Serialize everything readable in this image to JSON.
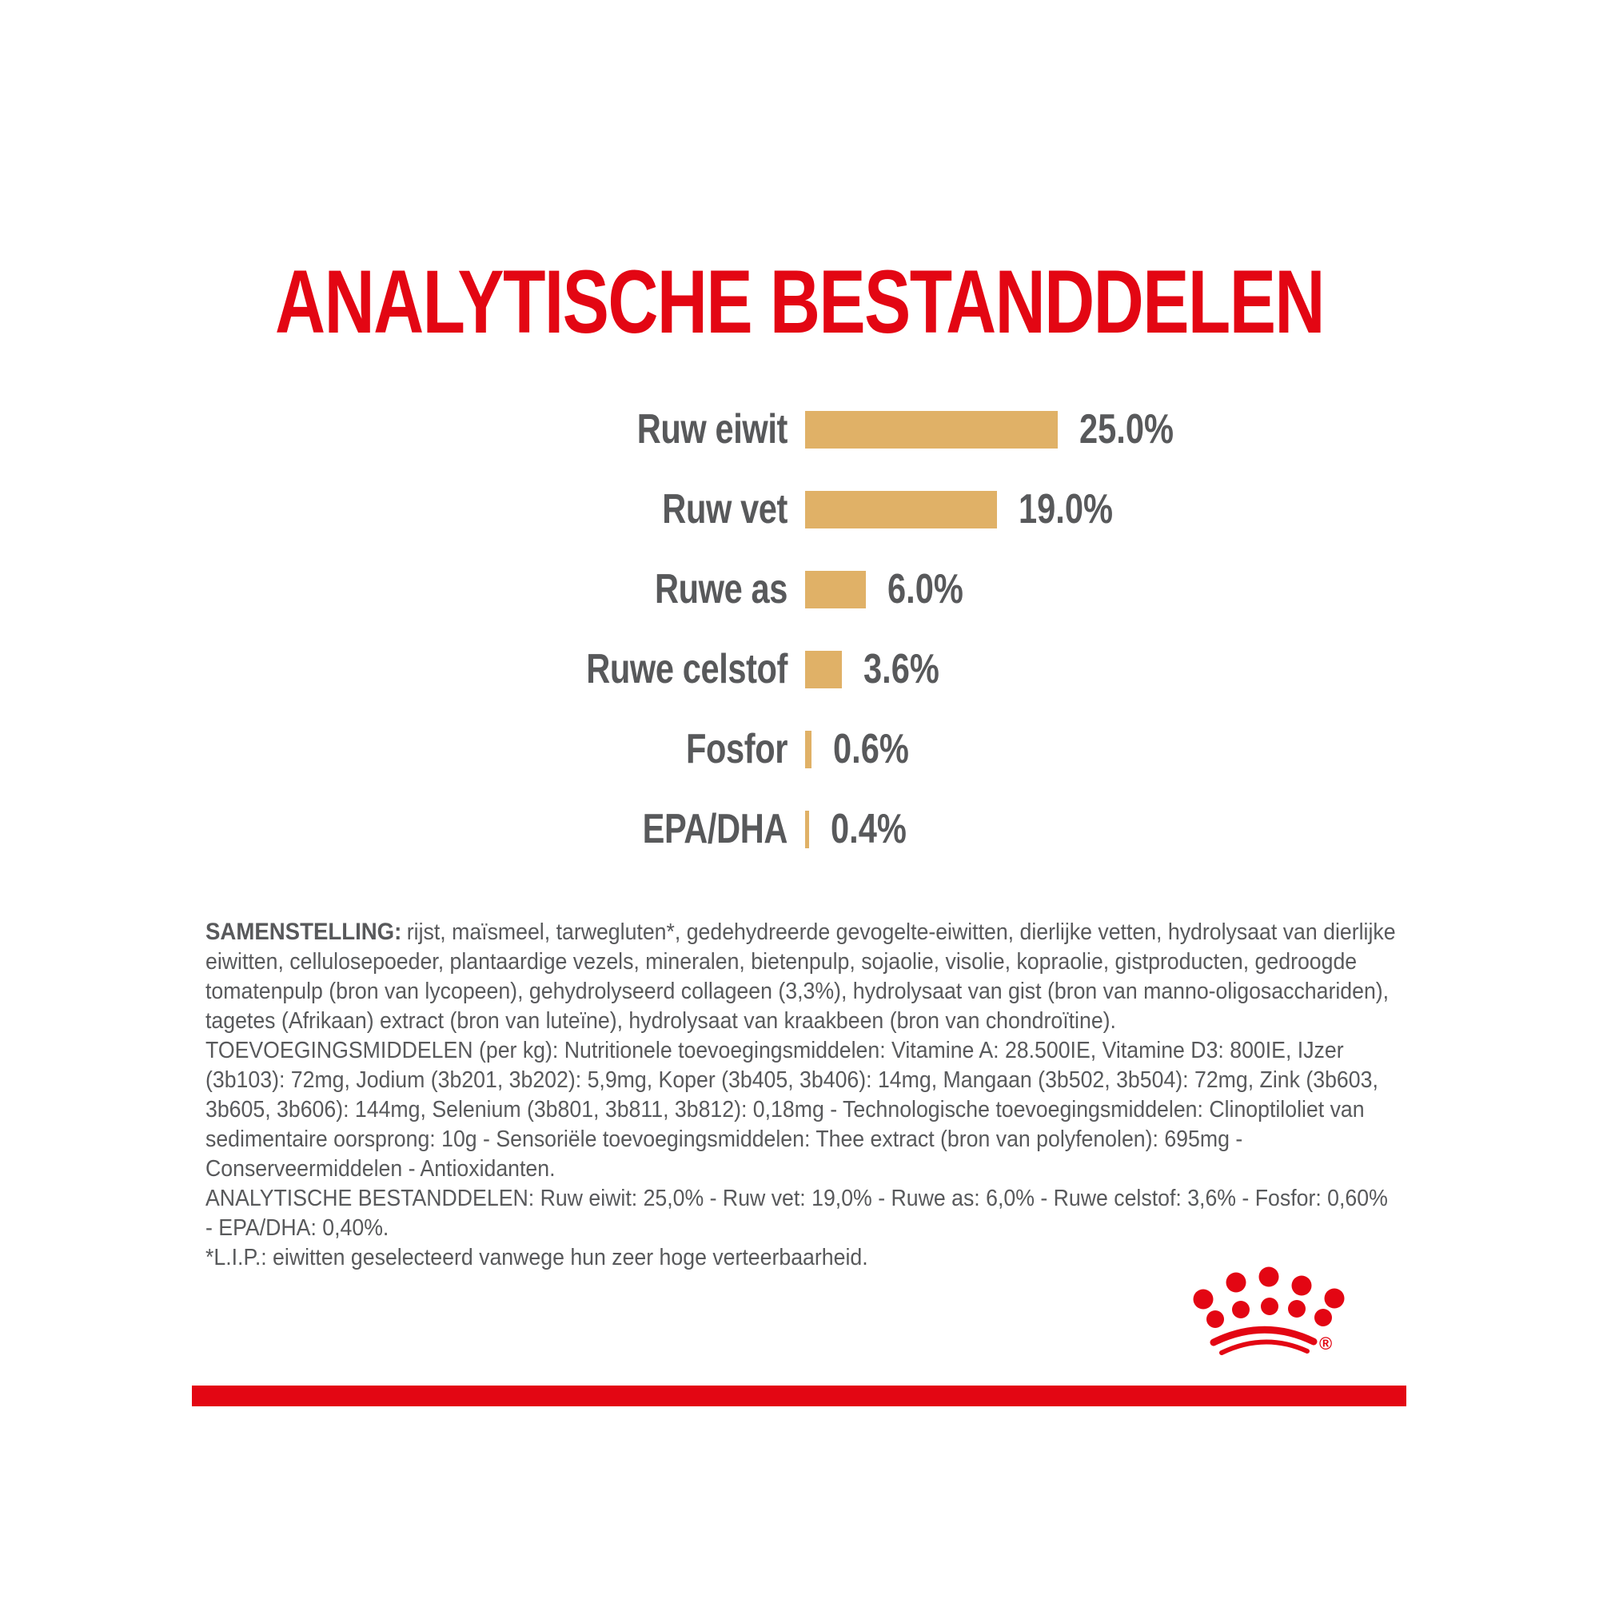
{
  "title": "ANALYTISCHE BESTANDDELEN",
  "colors": {
    "brand_red": "#e30613",
    "bar_tan": "#e0b167",
    "text_gray": "#58595b",
    "background": "#ffffff"
  },
  "chart_data": {
    "type": "bar",
    "orientation": "horizontal",
    "title": "ANALYTISCHE BESTANDDELEN",
    "unit": "%",
    "categories": [
      "Ruw eiwit",
      "Ruw vet",
      "Ruwe as",
      "Ruwe celstof",
      "Fosfor",
      "EPA/DHA"
    ],
    "values": [
      25.0,
      19.0,
      6.0,
      3.6,
      0.6,
      0.4
    ],
    "xlim": [
      0,
      25
    ],
    "grid": false,
    "legend": false,
    "bar_color": "#e0b167",
    "rows": [
      {
        "label": "Ruw eiwit",
        "value": 25.0,
        "display": "25.0%"
      },
      {
        "label": "Ruw vet",
        "value": 19.0,
        "display": "19.0%"
      },
      {
        "label": "Ruwe as",
        "value": 6.0,
        "display": "6.0%"
      },
      {
        "label": "Ruwe celstof",
        "value": 3.6,
        "display": "3.6%"
      },
      {
        "label": "Fosfor",
        "value": 0.6,
        "display": "0.6%"
      },
      {
        "label": "EPA/DHA",
        "value": 0.4,
        "display": "0.4%"
      }
    ]
  },
  "composition": {
    "samenstelling_label": "SAMENSTELLING:",
    "samenstelling_text": "rijst, maïsmeel, tarwegluten*, gedehydreerde gevogelte-eiwitten, dierlijke vetten, hydrolysaat van dierlijke eiwitten, cellulosepoeder, plantaardige vezels, mineralen, bietenpulp, sojaolie, visolie, kopraolie, gistproducten, gedroogde tomatenpulp (bron van lycopeen), gehydrolyseerd collageen (3,3%), hydrolysaat van gist (bron van manno-oligosacchariden), tagetes (Afrikaan) extract (bron van luteïne), hydrolysaat van kraakbeen (bron van chondroïtine).",
    "toevoegingsmiddelen": "TOEVOEGINGSMIDDELEN (per kg): Nutritionele toevoegingsmiddelen: Vitamine A: 28.500IE, Vitamine D3: 800IE, IJzer (3b103): 72mg, Jodium (3b201, 3b202): 5,9mg, Koper (3b405, 3b406): 14mg, Mangaan (3b502, 3b504): 72mg, Zink (3b603, 3b605, 3b606): 144mg, Selenium (3b801, 3b811, 3b812): 0,18mg - Technologische toevoegingsmiddelen: Clinoptiloliet van sedimentaire oorsprong: 10g - Sensoriële toevoegingsmiddelen: Thee extract (bron van polyfenolen): 695mg - Conserveermiddelen - Antioxidanten.",
    "analytische": "ANALYTISCHE BESTANDDELEN: Ruw eiwit: 25,0% - Ruw vet: 19,0% - Ruwe as: 6,0% - Ruwe celstof: 3,6% - Fosfor: 0,60% - EPA/DHA: 0,40%.",
    "lip_note": "*L.I.P.: eiwitten geselecteerd vanwege hun zeer hoge verteerbaarheid."
  },
  "logo": {
    "icon": "royal-canin-crown-icon",
    "registered_mark": "®"
  }
}
